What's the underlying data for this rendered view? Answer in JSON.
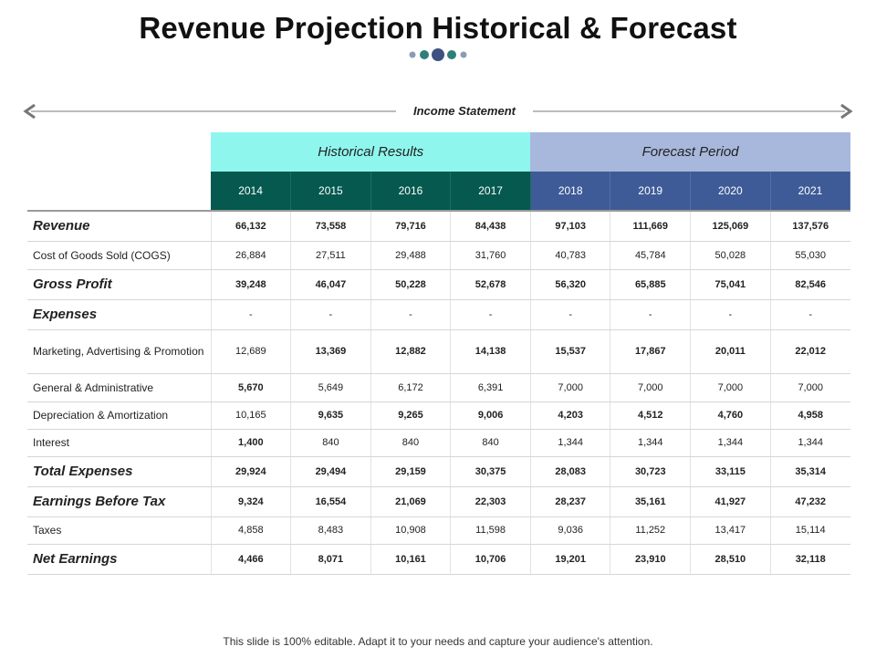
{
  "title": "Revenue Projection Historical & Forecast",
  "section_label": "Income Statement",
  "groups": {
    "historical": "Historical Results",
    "forecast": "Forecast Period"
  },
  "years": [
    "2014",
    "2015",
    "2016",
    "2017",
    "2018",
    "2019",
    "2020",
    "2021"
  ],
  "rows": [
    {
      "label": "Revenue",
      "major": true,
      "values": [
        "66,132",
        "73,558",
        "79,716",
        "84,438",
        "97,103",
        "111,669",
        "125,069",
        "137,576"
      ],
      "bold": [
        true,
        true,
        true,
        true,
        true,
        true,
        true,
        true
      ]
    },
    {
      "label": "Cost of Goods Sold (COGS)",
      "major": false,
      "values": [
        "26,884",
        "27,511",
        "29,488",
        "31,760",
        "40,783",
        "45,784",
        "50,028",
        "55,030"
      ],
      "bold": [
        false,
        false,
        false,
        false,
        false,
        false,
        false,
        false
      ]
    },
    {
      "label": "Gross Profit",
      "major": true,
      "values": [
        "39,248",
        "46,047",
        "50,228",
        "52,678",
        "56,320",
        "65,885",
        "75,041",
        "82,546"
      ],
      "bold": [
        true,
        true,
        true,
        true,
        true,
        true,
        true,
        true
      ]
    },
    {
      "label": "Expenses",
      "major": true,
      "values": [
        "-",
        "-",
        "-",
        "-",
        "-",
        "-",
        "-",
        "-"
      ],
      "bold": [
        false,
        false,
        false,
        false,
        false,
        false,
        false,
        false
      ]
    },
    {
      "label": "Marketing, Advertising & Promotion",
      "major": false,
      "tall": true,
      "values": [
        "12,689",
        "13,369",
        "12,882",
        "14,138",
        "15,537",
        "17,867",
        "20,011",
        "22,012"
      ],
      "bold": [
        false,
        true,
        true,
        true,
        true,
        true,
        true,
        true
      ]
    },
    {
      "label": "General & Administrative",
      "major": false,
      "values": [
        "5,670",
        "5,649",
        "6,172",
        "6,391",
        "7,000",
        "7,000",
        "7,000",
        "7,000"
      ],
      "bold": [
        true,
        false,
        false,
        false,
        false,
        false,
        false,
        false
      ]
    },
    {
      "label": "Depreciation & Amortization",
      "major": false,
      "values": [
        "10,165",
        "9,635",
        "9,265",
        "9,006",
        "4,203",
        "4,512",
        "4,760",
        "4,958"
      ],
      "bold": [
        false,
        true,
        true,
        true,
        true,
        true,
        true,
        true
      ]
    },
    {
      "label": "Interest",
      "major": false,
      "values": [
        "1,400",
        "840",
        "840",
        "840",
        "1,344",
        "1,344",
        "1,344",
        "1,344"
      ],
      "bold": [
        true,
        false,
        false,
        false,
        false,
        false,
        false,
        false
      ]
    },
    {
      "label": "Total Expenses",
      "major": true,
      "values": [
        "29,924",
        "29,494",
        "29,159",
        "30,375",
        "28,083",
        "30,723",
        "33,115",
        "35,314"
      ],
      "bold": [
        true,
        true,
        true,
        true,
        true,
        true,
        true,
        true
      ]
    },
    {
      "label": "Earnings Before Tax",
      "major": true,
      "values": [
        "9,324",
        "16,554",
        "21,069",
        "22,303",
        "28,237",
        "35,161",
        "41,927",
        "47,232"
      ],
      "bold": [
        true,
        true,
        true,
        true,
        true,
        true,
        true,
        true
      ]
    },
    {
      "label": "Taxes",
      "major": false,
      "values": [
        "4,858",
        "8,483",
        "10,908",
        "11,598",
        "9,036",
        "11,252",
        "13,417",
        "15,114"
      ],
      "bold": [
        false,
        false,
        false,
        false,
        false,
        false,
        false,
        false
      ]
    },
    {
      "label": "Net Earnings",
      "major": true,
      "values": [
        "4,466",
        "8,071",
        "10,161",
        "10,706",
        "19,201",
        "23,910",
        "28,510",
        "32,118"
      ],
      "bold": [
        true,
        true,
        true,
        true,
        true,
        true,
        true,
        true
      ]
    }
  ],
  "footer": "This slide is 100% editable. Adapt it to your needs and capture your audience's attention.",
  "colors": {
    "historical_group": "#8ff6ee",
    "forecast_group": "#a7b8dc",
    "historical_years": "#05594f",
    "forecast_years": "#3e5b97",
    "dot_gray": "#8a9bb6",
    "dot_teal": "#2e7f78",
    "dot_navy": "#3d5280"
  }
}
